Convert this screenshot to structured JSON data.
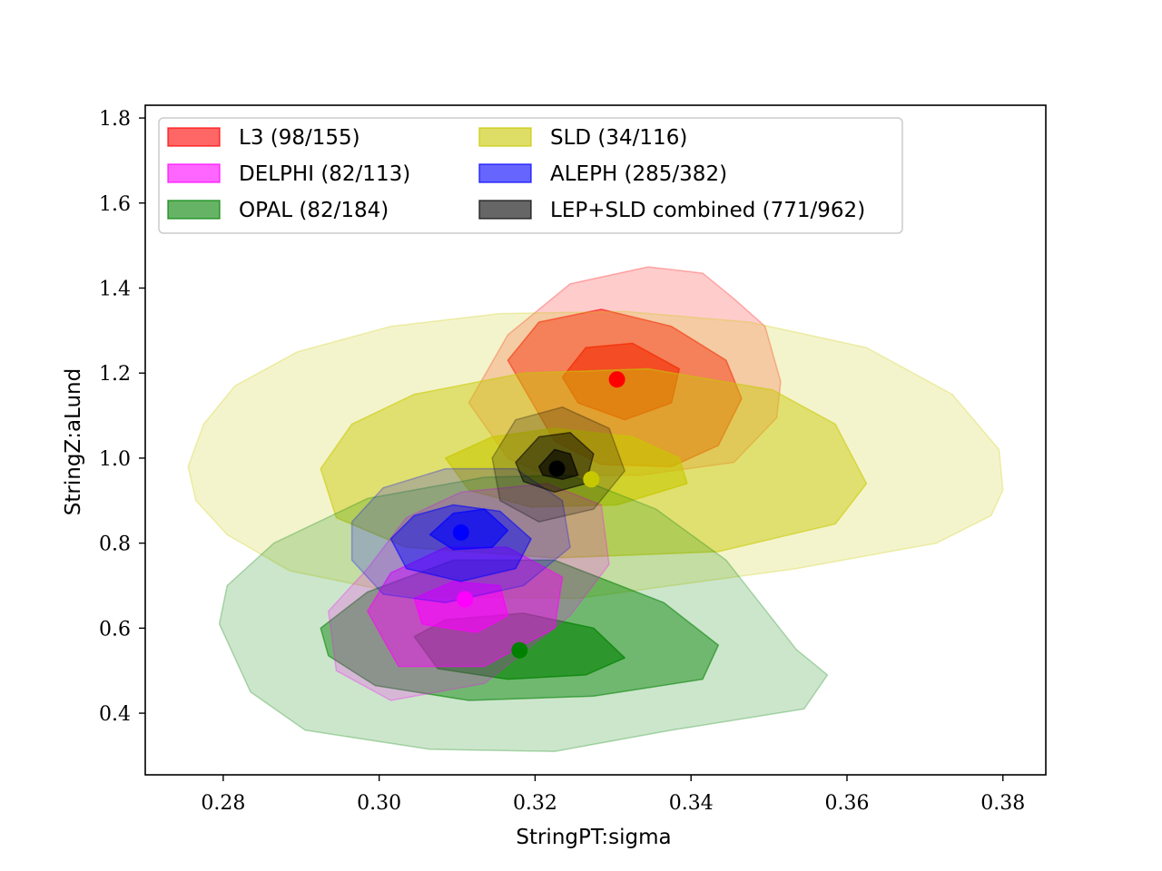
{
  "chart_data": {
    "type": "contour",
    "xlabel": "StringPT:sigma",
    "ylabel": "StringZ:aLund",
    "xlim": [
      0.27,
      0.3855
    ],
    "ylim": [
      0.255,
      1.83
    ],
    "xticks": [
      {
        "value": 0.28,
        "label": "0.28"
      },
      {
        "value": 0.3,
        "label": "0.30"
      },
      {
        "value": 0.32,
        "label": "0.32"
      },
      {
        "value": 0.34,
        "label": "0.34"
      },
      {
        "value": 0.36,
        "label": "0.36"
      },
      {
        "value": 0.38,
        "label": "0.38"
      }
    ],
    "yticks": [
      {
        "value": 0.4,
        "label": "0.4"
      },
      {
        "value": 0.6,
        "label": "0.6"
      },
      {
        "value": 0.8,
        "label": "0.8"
      },
      {
        "value": 1.0,
        "label": "1.0"
      },
      {
        "value": 1.2,
        "label": "1.2"
      },
      {
        "value": 1.4,
        "label": "1.4"
      },
      {
        "value": 1.6,
        "label": "1.6"
      },
      {
        "value": 1.8,
        "label": "1.8"
      }
    ],
    "legend_position": "upper-left",
    "legend_columns": 2,
    "series": [
      {
        "name": "L3 (98/155)",
        "color": "#ff0000",
        "best_fit": [
          0.3305,
          1.185
        ],
        "regions": [
          [
            0.3115,
            1.13,
            0.3165,
            1.29,
            0.3245,
            1.41,
            0.3345,
            1.45,
            0.3415,
            1.435,
            0.3455,
            1.375,
            0.3495,
            1.31,
            0.3515,
            1.18,
            0.351,
            1.095,
            0.3455,
            0.99,
            0.3335,
            0.96,
            0.3215,
            0.96,
            0.3165,
            1.0
          ],
          [
            0.3165,
            1.23,
            0.3205,
            1.32,
            0.3285,
            1.35,
            0.3375,
            1.31,
            0.3445,
            1.23,
            0.3465,
            1.14,
            0.3435,
            1.03,
            0.3375,
            0.98,
            0.3285,
            0.985,
            0.3225,
            1.04
          ],
          [
            0.3235,
            1.19,
            0.3265,
            1.26,
            0.3325,
            1.27,
            0.3385,
            1.21,
            0.3375,
            1.13,
            0.3315,
            1.09,
            0.3255,
            1.13
          ]
        ]
      },
      {
        "name": "SLD (34/116)",
        "color": "#c8c800",
        "best_fit": [
          0.3272,
          0.95
        ],
        "regions": [
          [
            0.2755,
            0.98,
            0.2775,
            1.08,
            0.2815,
            1.17,
            0.2895,
            1.25,
            0.3015,
            1.31,
            0.3155,
            1.34,
            0.3315,
            1.345,
            0.3475,
            1.32,
            0.3625,
            1.26,
            0.3735,
            1.15,
            0.3795,
            1.02,
            0.38,
            0.925,
            0.3785,
            0.865,
            0.3715,
            0.8,
            0.3535,
            0.74,
            0.3255,
            0.67,
            0.3045,
            0.675,
            0.2885,
            0.735,
            0.2805,
            0.82,
            0.2765,
            0.9
          ],
          [
            0.2925,
            0.975,
            0.2965,
            1.08,
            0.3045,
            1.15,
            0.3185,
            1.2,
            0.3345,
            1.21,
            0.3505,
            1.16,
            0.3585,
            1.08,
            0.3625,
            0.94,
            0.3585,
            0.845,
            0.3435,
            0.78,
            0.3225,
            0.765,
            0.3035,
            0.79,
            0.2945,
            0.86
          ],
          [
            0.3085,
            1.0,
            0.3145,
            1.05,
            0.3225,
            1.07,
            0.3325,
            1.05,
            0.3385,
            1.0,
            0.3395,
            0.94,
            0.3305,
            0.89,
            0.3195,
            0.885,
            0.3115,
            0.925
          ]
        ]
      },
      {
        "name": "OPAL (82/184)",
        "color": "#008000",
        "best_fit": [
          0.318,
          0.548
        ],
        "regions": [
          [
            0.2795,
            0.61,
            0.2805,
            0.7,
            0.2865,
            0.8,
            0.2985,
            0.905,
            0.3135,
            0.955,
            0.3245,
            0.96,
            0.3355,
            0.88,
            0.3445,
            0.76,
            0.3535,
            0.55,
            0.3575,
            0.49,
            0.3545,
            0.41,
            0.3375,
            0.36,
            0.3225,
            0.31,
            0.3065,
            0.315,
            0.2905,
            0.36,
            0.2835,
            0.45
          ],
          [
            0.2925,
            0.6,
            0.2985,
            0.685,
            0.3095,
            0.76,
            0.3225,
            0.76,
            0.3365,
            0.66,
            0.3435,
            0.56,
            0.3415,
            0.48,
            0.3275,
            0.44,
            0.3115,
            0.43,
            0.2995,
            0.465,
            0.2935,
            0.535
          ],
          [
            0.3045,
            0.58,
            0.3085,
            0.62,
            0.3185,
            0.635,
            0.3275,
            0.6,
            0.3315,
            0.53,
            0.3265,
            0.49,
            0.3165,
            0.48,
            0.3075,
            0.505
          ]
        ]
      },
      {
        "name": "DELPHI (82/113)",
        "color": "#ff00ff",
        "best_fit": [
          0.311,
          0.668
        ],
        "regions": [
          [
            0.2935,
            0.64,
            0.2985,
            0.74,
            0.3035,
            0.86,
            0.3105,
            0.92,
            0.3215,
            0.94,
            0.3285,
            0.89,
            0.3295,
            0.75,
            0.3245,
            0.63,
            0.3135,
            0.47,
            0.3015,
            0.43,
            0.2945,
            0.5
          ],
          [
            0.2985,
            0.64,
            0.3015,
            0.73,
            0.3085,
            0.79,
            0.3165,
            0.79,
            0.3235,
            0.72,
            0.3225,
            0.6,
            0.3135,
            0.51,
            0.3025,
            0.51
          ],
          [
            0.3045,
            0.67,
            0.3095,
            0.71,
            0.3155,
            0.7,
            0.3165,
            0.63,
            0.3125,
            0.59,
            0.3055,
            0.61
          ]
        ]
      },
      {
        "name": "ALEPH (285/382)",
        "color": "#0000ff",
        "best_fit": [
          0.3105,
          0.825
        ],
        "regions": [
          [
            0.2965,
            0.85,
            0.3005,
            0.93,
            0.3085,
            0.975,
            0.3175,
            0.975,
            0.3235,
            0.9,
            0.3245,
            0.79,
            0.3185,
            0.7,
            0.3085,
            0.66,
            0.3005,
            0.68,
            0.2965,
            0.76
          ],
          [
            0.3015,
            0.81,
            0.3045,
            0.865,
            0.3095,
            0.89,
            0.3155,
            0.875,
            0.3195,
            0.81,
            0.3175,
            0.74,
            0.3105,
            0.71,
            0.3035,
            0.74
          ],
          [
            0.3065,
            0.82,
            0.3095,
            0.87,
            0.3135,
            0.88,
            0.3165,
            0.83,
            0.3145,
            0.79,
            0.3095,
            0.785
          ]
        ]
      },
      {
        "name": "LEP+SLD combined (771/962)",
        "color": "#000000",
        "best_fit": [
          0.3228,
          0.975
        ],
        "regions": [
          [
            0.3145,
            1.0,
            0.3175,
            1.09,
            0.3235,
            1.12,
            0.3295,
            1.07,
            0.3315,
            0.97,
            0.3275,
            0.88,
            0.3205,
            0.85,
            0.3155,
            0.9
          ],
          [
            0.3175,
            0.99,
            0.3205,
            1.05,
            0.3245,
            1.06,
            0.3275,
            1.01,
            0.3265,
            0.94,
            0.3225,
            0.92,
            0.3185,
            0.945
          ],
          [
            0.3205,
            0.98,
            0.3225,
            1.02,
            0.3245,
            1.01,
            0.3255,
            0.96,
            0.3235,
            0.95,
            0.321,
            0.96
          ]
        ]
      }
    ],
    "legend": [
      {
        "label": "L3 (98/155)",
        "color": "#ff0000"
      },
      {
        "label": "DELPHI (82/113)",
        "color": "#ff00ff"
      },
      {
        "label": "OPAL (82/184)",
        "color": "#008000"
      },
      {
        "label": "SLD (34/116)",
        "color": "#c8c800"
      },
      {
        "label": "ALEPH (285/382)",
        "color": "#0000ff"
      },
      {
        "label": "LEP+SLD combined (771/962)",
        "color": "#000000"
      }
    ]
  }
}
